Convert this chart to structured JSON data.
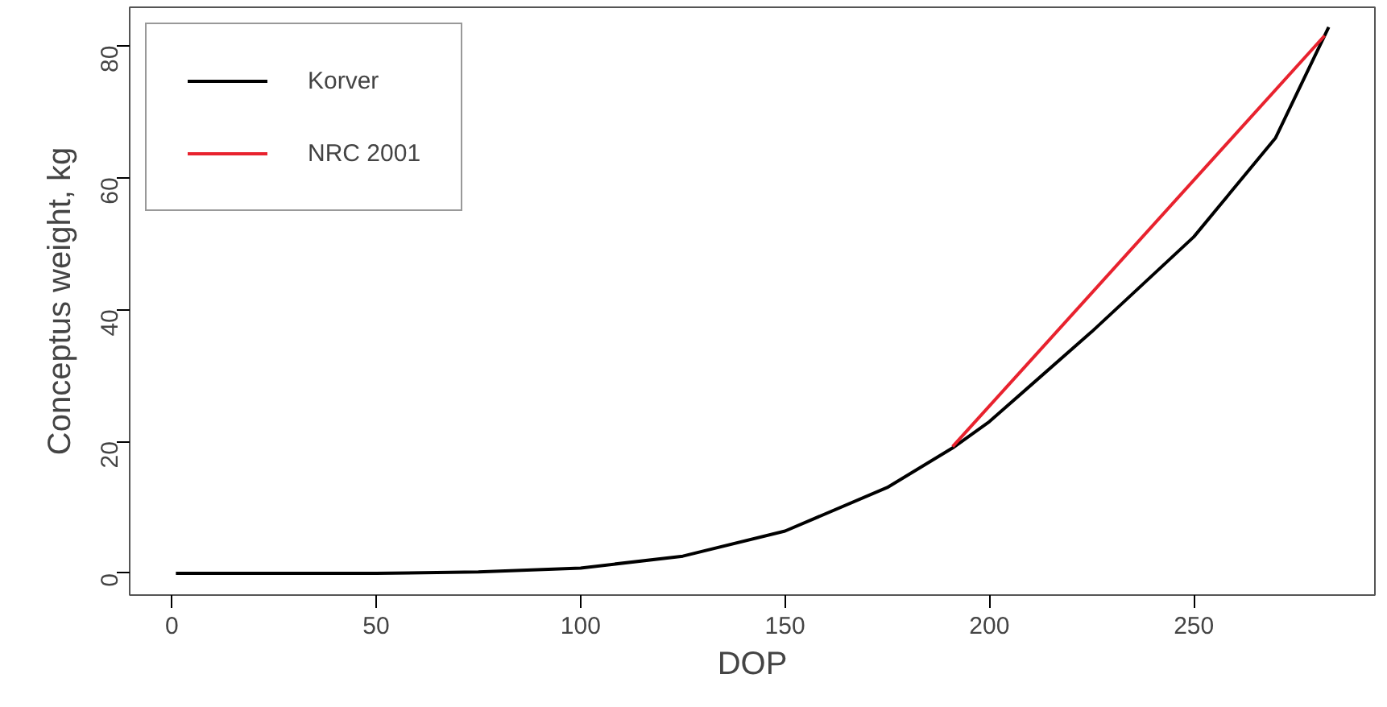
{
  "chart_data": {
    "type": "line",
    "xlabel": "DOP",
    "ylabel": "Conceptus weight, kg",
    "xlim": [
      -10.3,
      294.3
    ],
    "ylim": [
      -3.3,
      85.8
    ],
    "xticks": [
      0,
      50,
      100,
      150,
      200,
      250
    ],
    "yticks": [
      0,
      20,
      40,
      60,
      80
    ],
    "grid": false,
    "legend": "top left",
    "marker": "none",
    "line_style": "solid",
    "series": [
      {
        "name": "Korver",
        "color": "#000000",
        "x": [
          1,
          50,
          75,
          100,
          125,
          150,
          175,
          191,
          200,
          225,
          250,
          270,
          283
        ],
        "values": [
          0,
          0,
          0.2,
          0.8,
          2.6,
          6.4,
          13,
          19,
          23,
          36.6,
          51,
          66,
          82.8
        ]
      },
      {
        "name": "NRC 2001",
        "color": "#e8222e",
        "x": [
          191,
          282
        ],
        "values": [
          19.2,
          81.5
        ]
      }
    ]
  }
}
